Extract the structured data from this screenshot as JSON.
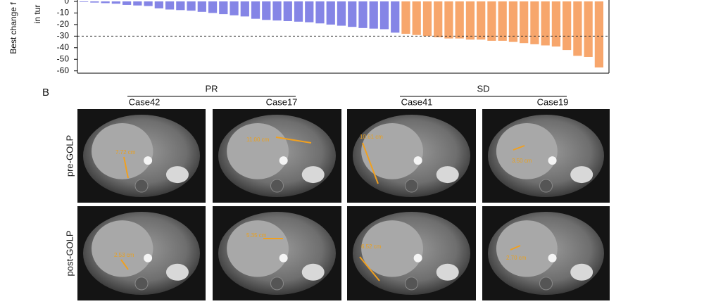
{
  "chart_data": {
    "type": "bar",
    "ylabel": [
      "Best change f",
      "in tur"
    ],
    "ylim": [
      -62,
      0
    ],
    "yticks": [
      0,
      -10,
      -20,
      -30,
      -40,
      -50,
      -60
    ],
    "threshold": -30,
    "series": [
      {
        "color": "#8585e6",
        "values": [
          -0.5,
          -1,
          -1.5,
          -2,
          -3,
          -3.5,
          -4,
          -6,
          -7,
          -7.5,
          -8,
          -9,
          -10,
          -11,
          -12,
          -13,
          -15,
          -16,
          -16.5,
          -17,
          -17.5,
          -18,
          -19,
          -20,
          -21,
          -22,
          -23,
          -23.5,
          -24,
          -27
        ]
      },
      {
        "color": "#f7a66c",
        "values": [
          -28,
          -29,
          -30,
          -31,
          -32,
          -32,
          -33,
          -33,
          -34,
          -34,
          -35,
          -36,
          -37,
          -38,
          -39,
          -42,
          -47,
          -48,
          -57
        ]
      }
    ]
  },
  "panel_b": {
    "label": "B",
    "groups": [
      {
        "label": "PR",
        "cases": [
          "Case42",
          "Case17"
        ]
      },
      {
        "label": "SD",
        "cases": [
          "Case41",
          "Case19"
        ]
      }
    ],
    "rows": [
      {
        "label": "pre-GOLP",
        "measurements": [
          "7.72 cm",
          "11.00 cm",
          "10.61 cm",
          "3.50 cm"
        ]
      },
      {
        "label": "post-GOLP",
        "measurements": [
          "2.53 cm",
          "5.35 cm",
          "6.52 cm",
          "2.70 cm"
        ]
      }
    ]
  }
}
